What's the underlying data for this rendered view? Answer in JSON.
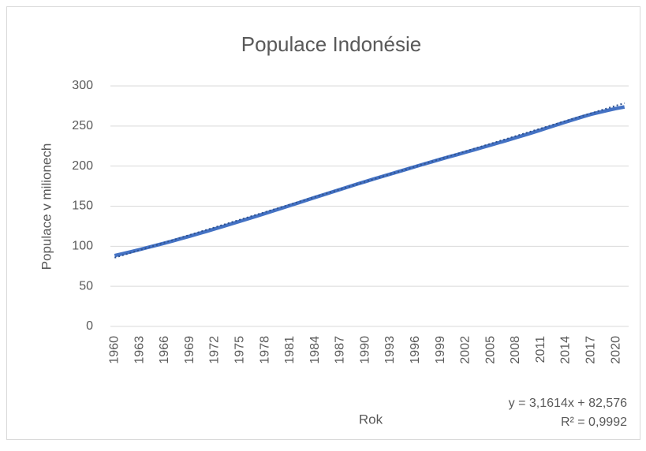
{
  "chart_data": {
    "type": "line",
    "title": "Populace Indonésie",
    "x_label": "Rok",
    "y_label": "Populace v milionech",
    "categories": [
      "1960",
      null,
      null,
      "1963",
      null,
      null,
      "1966",
      null,
      null,
      "1969",
      null,
      null,
      "1972",
      null,
      null,
      "1975",
      null,
      null,
      "1978",
      null,
      null,
      "1981",
      null,
      null,
      "1984",
      null,
      null,
      "1987",
      null,
      null,
      "1990",
      null,
      null,
      "1993",
      null,
      null,
      "1996",
      null,
      null,
      "1999",
      null,
      null,
      "2002",
      null,
      null,
      "2005",
      null,
      null,
      "2008",
      null,
      null,
      "2011",
      null,
      null,
      "2014",
      null,
      null,
      "2017",
      null,
      null,
      "2020",
      null
    ],
    "series": [
      {
        "color": "#4472c4",
        "values": [
          88.3,
          90.8,
          93.3,
          95.9,
          98.6,
          101.3,
          104.0,
          106.8,
          109.7,
          112.6,
          115.6,
          118.6,
          121.7,
          124.8,
          128.0,
          131.2,
          134.4,
          137.6,
          140.9,
          144.2,
          147.5,
          150.9,
          154.2,
          157.6,
          161.0,
          164.3,
          167.6,
          170.9,
          174.2,
          177.5,
          180.7,
          183.9,
          187.0,
          190.1,
          193.2,
          196.3,
          199.4,
          202.5,
          205.5,
          208.6,
          211.5,
          214.4,
          217.4,
          220.3,
          223.3,
          226.3,
          229.3,
          232.3,
          235.5,
          238.6,
          241.8,
          245.1,
          248.5,
          251.8,
          255.1,
          258.4,
          261.6,
          264.6,
          267.1,
          269.6,
          271.9,
          273.8
        ]
      }
    ],
    "trendline": {
      "label": "y = 3,1614x + 82,576",
      "r2_label": "R² = 0,9992",
      "slope": 3.1614,
      "intercept": 82.576,
      "color": "#2f528f"
    },
    "ylim": [
      0,
      300
    ],
    "yticks": [
      0,
      50,
      100,
      150,
      200,
      250,
      300
    ],
    "grid": true
  }
}
